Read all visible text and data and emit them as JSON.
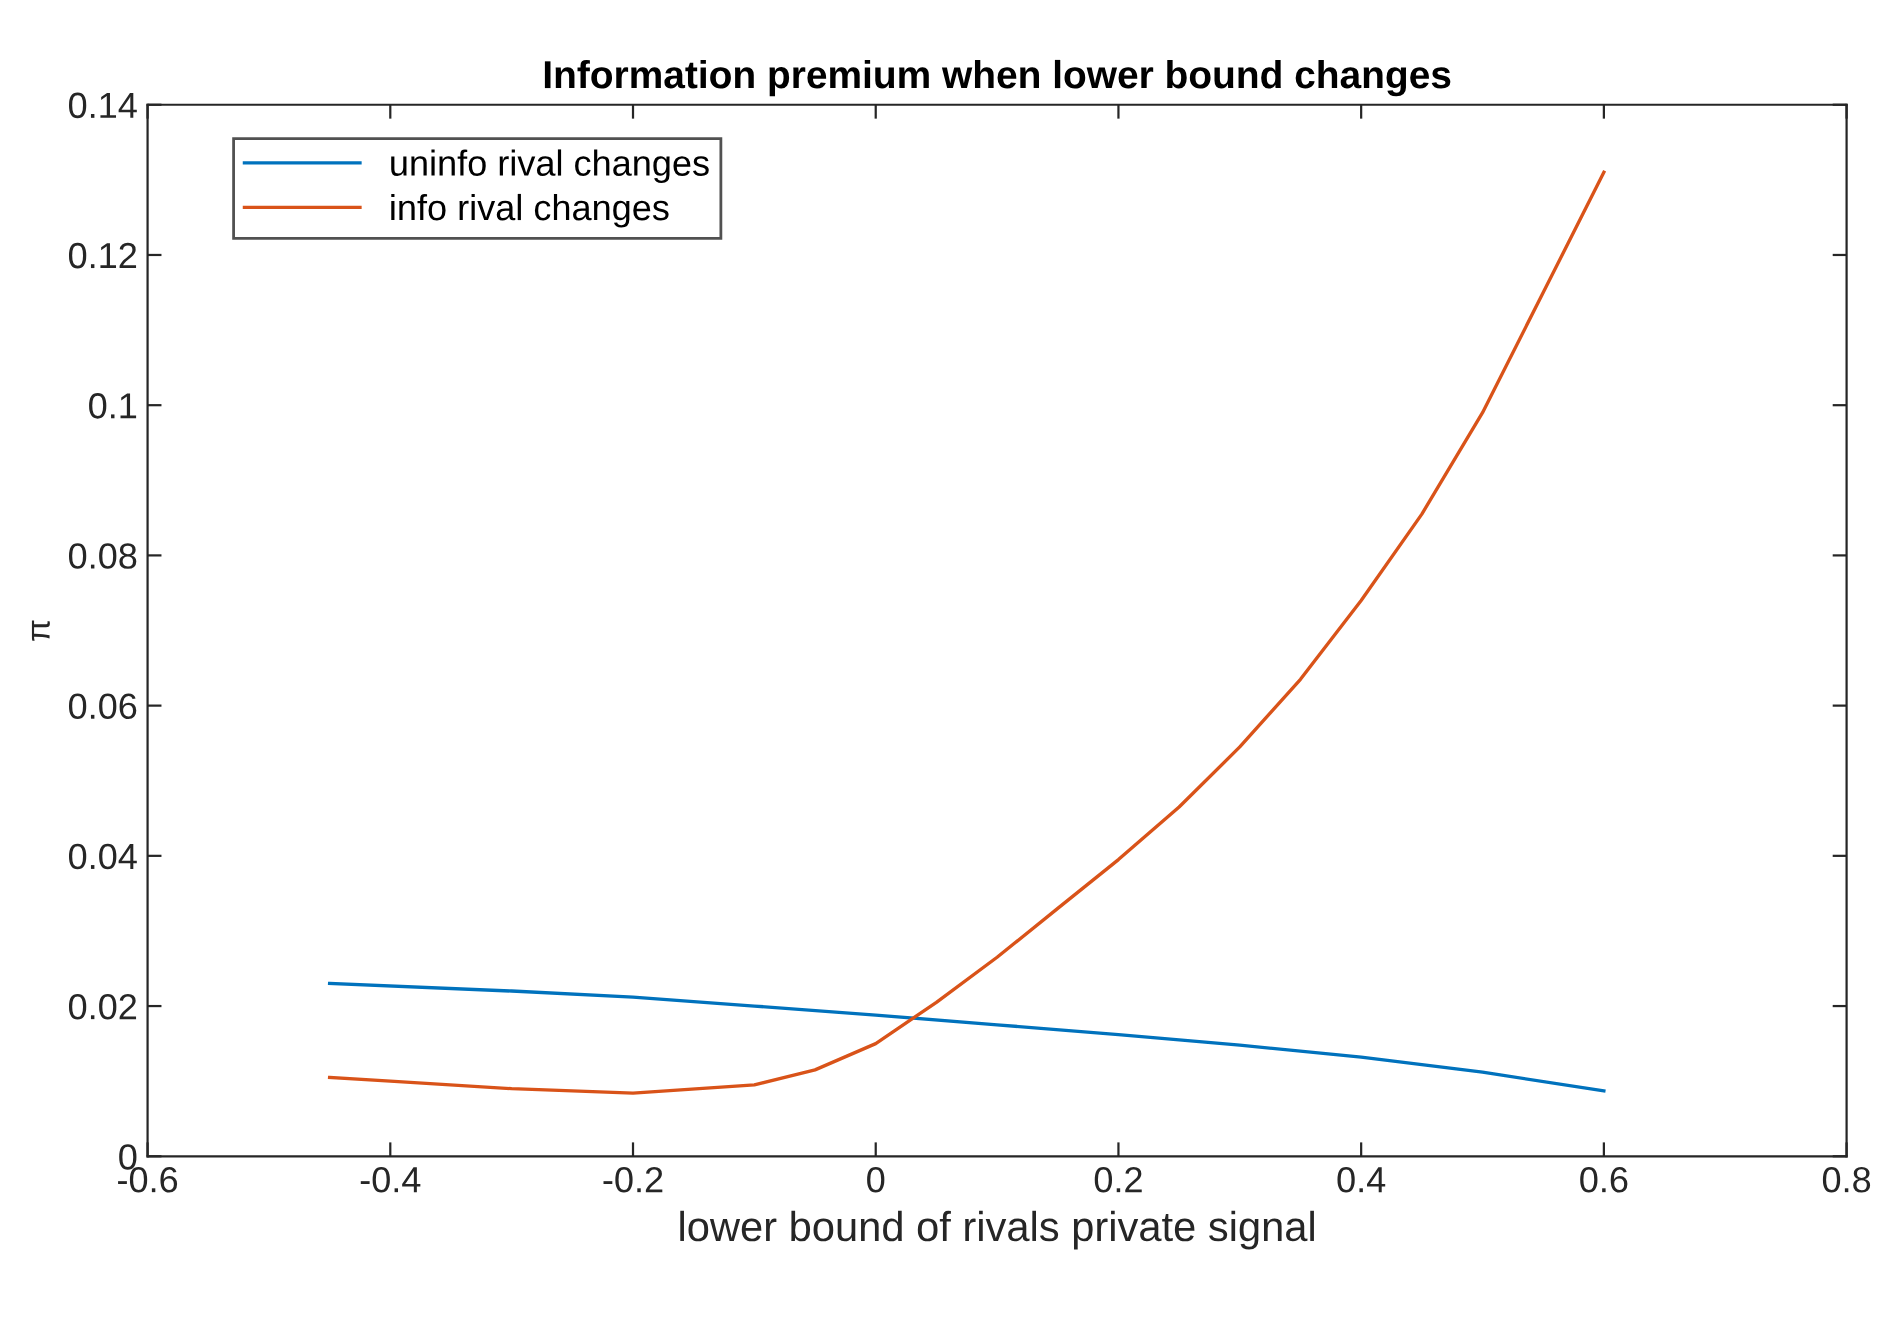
{
  "chart_data": {
    "type": "line",
    "title": "Information premium when lower bound changes",
    "xlabel": "lower bound of rivals private signal",
    "ylabel": "π",
    "xlim": [
      -0.6,
      0.8
    ],
    "xticks": [
      -0.6,
      -0.4,
      -0.2,
      0,
      0.2,
      0.4,
      0.6,
      0.8
    ],
    "ylim": [
      0,
      0.14
    ],
    "yticks": [
      0,
      0.02,
      0.04,
      0.06,
      0.08,
      0.1,
      0.12,
      0.14
    ],
    "grid": false,
    "legend": "top left",
    "marker": "none",
    "line_style": "solid",
    "series": [
      {
        "name": "uninfo rival changes",
        "color": "#0072bd",
        "x": [
          -0.45,
          -0.3,
          -0.2,
          -0.1,
          0,
          0.1,
          0.2,
          0.3,
          0.4,
          0.5,
          0.6
        ],
        "values": [
          0.023,
          0.022,
          0.0212,
          0.02,
          0.0188,
          0.0175,
          0.0162,
          0.0148,
          0.0132,
          0.0112,
          0.0087
        ]
      },
      {
        "name": "info rival changes",
        "color": "#d95319",
        "x": [
          -0.45,
          -0.4,
          -0.3,
          -0.2,
          -0.1,
          -0.05,
          0,
          0.05,
          0.1,
          0.15,
          0.2,
          0.25,
          0.3,
          0.35,
          0.4,
          0.45,
          0.5,
          0.55,
          0.6
        ],
        "values": [
          0.0105,
          0.01,
          0.009,
          0.0084,
          0.0095,
          0.0115,
          0.015,
          0.0205,
          0.0265,
          0.033,
          0.0395,
          0.0465,
          0.0545,
          0.0635,
          0.074,
          0.0855,
          0.099,
          0.115,
          0.131
        ]
      }
    ]
  }
}
